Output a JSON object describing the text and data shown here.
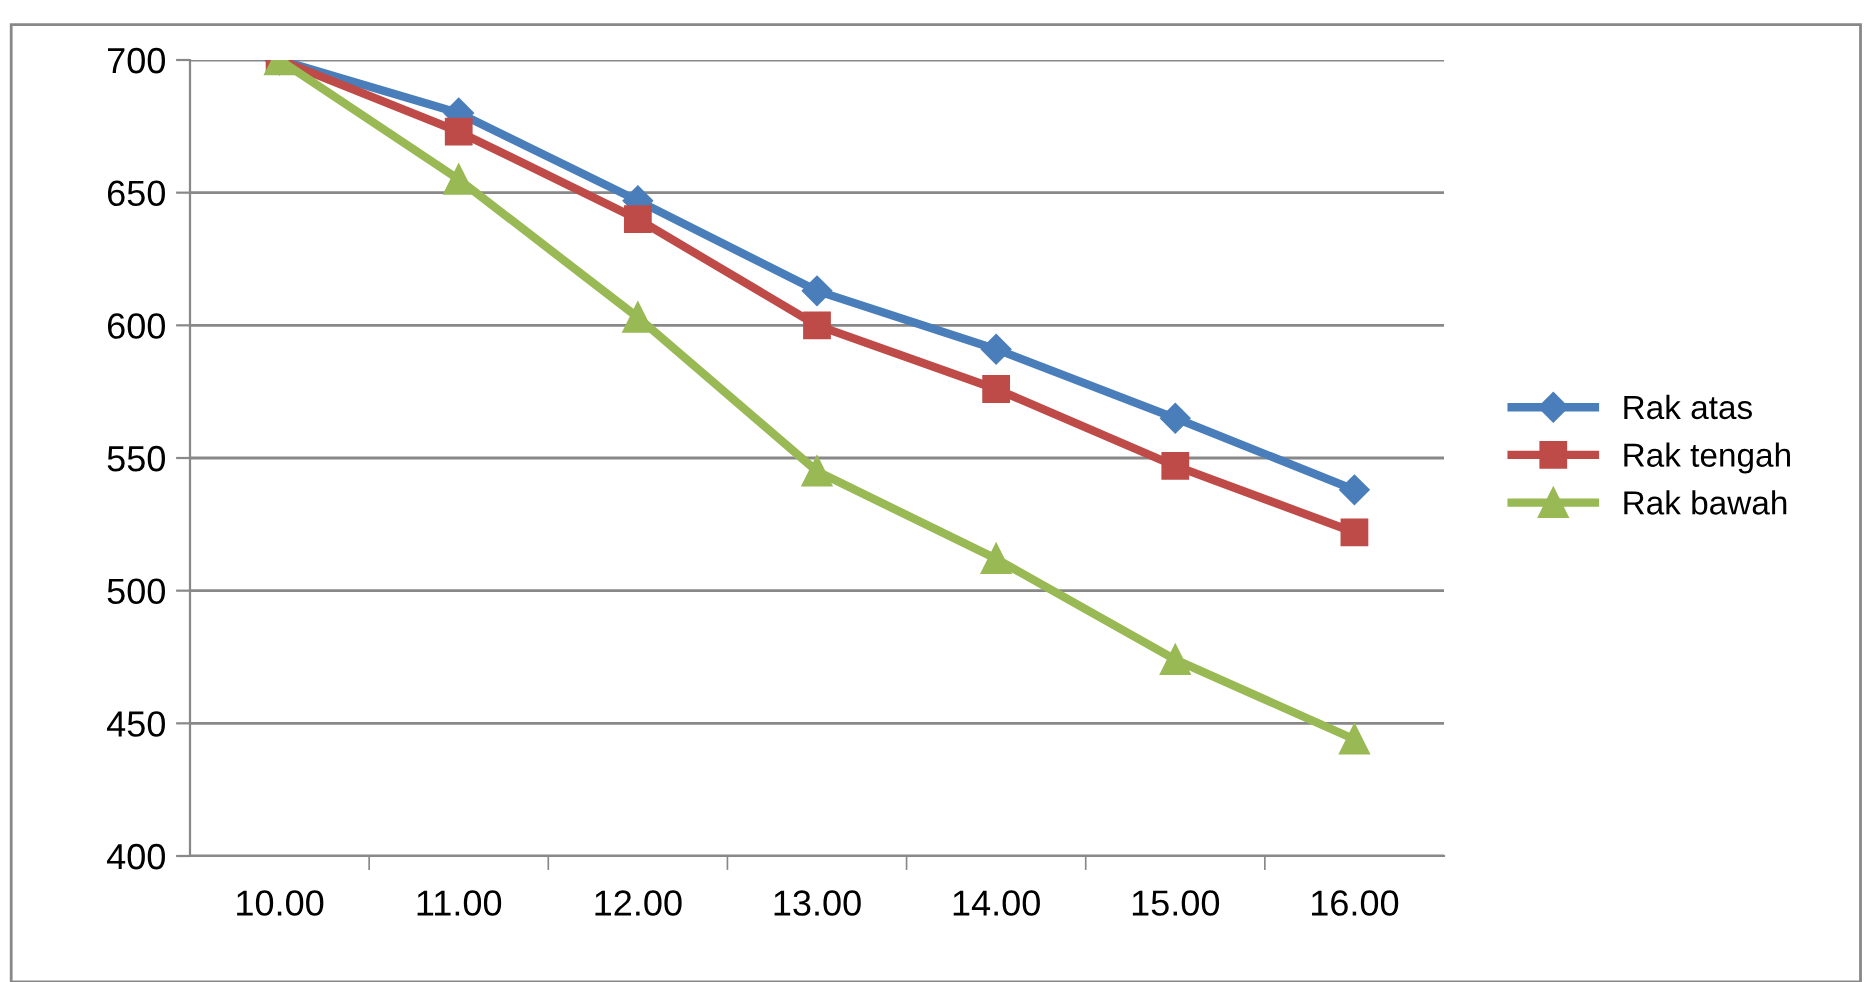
{
  "chart_data": {
    "type": "line",
    "categories": [
      "10.00",
      "11.00",
      "12.00",
      "13.00",
      "14.00",
      "15.00",
      "16.00"
    ],
    "series": [
      {
        "name": "Rak atas",
        "color": "#4a7ebb",
        "marker": "diamond",
        "values": [
          700,
          680,
          647,
          613,
          591,
          565,
          538
        ]
      },
      {
        "name": "Rak tengah",
        "color": "#be4b48",
        "marker": "square",
        "values": [
          700,
          673,
          640,
          600,
          576,
          547,
          522
        ]
      },
      {
        "name": "Rak bawah",
        "color": "#98b954",
        "marker": "triangle",
        "values": [
          700,
          655,
          603,
          545,
          512,
          474,
          444
        ]
      }
    ],
    "ylim": [
      400,
      700
    ],
    "yticks": [
      400,
      450,
      500,
      550,
      600,
      650,
      700
    ],
    "grid": "y",
    "legend": "right"
  }
}
